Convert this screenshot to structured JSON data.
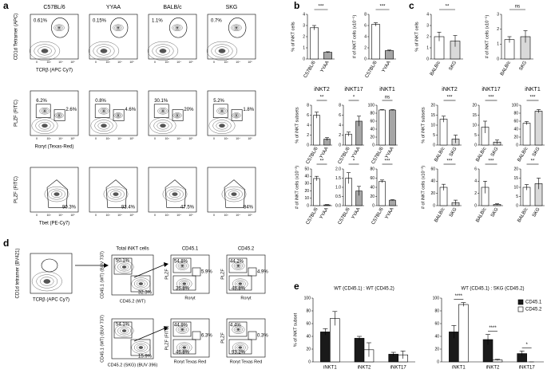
{
  "panel_labels": [
    "a",
    "b",
    "c",
    "d",
    "e"
  ],
  "flow_a": {
    "columns": [
      "C57BL/6",
      "YYAA",
      "BALB/c",
      "SKG"
    ],
    "axis_ticks": [
      "0",
      "10³",
      "10⁴",
      "10⁵"
    ],
    "rows": [
      {
        "ylabel": "CD1d Tetramer (APC)",
        "xlabel": "TCRβ (APC Cy7)",
        "gates": [
          [
            "0.61%"
          ],
          [
            "0.15%"
          ],
          [
            "1.1%"
          ],
          [
            "0.7%"
          ]
        ]
      },
      {
        "ylabel": "PLZF (FITC)",
        "xlabel": "Rorγt (Texas-Red)",
        "gates": [
          [
            "6.2%",
            "2.6%"
          ],
          [
            "0.8%",
            "4.6%"
          ],
          [
            "30.1%",
            "20%"
          ],
          [
            "5.2%",
            "1.8%"
          ]
        ]
      },
      {
        "ylabel": "PLZF (FITC)",
        "xlabel": "Tbet (PE-Cy7)",
        "gates": [
          [
            "90.3%"
          ],
          [
            "93.4%"
          ],
          [
            "47.5%"
          ],
          [
            "84%"
          ]
        ]
      }
    ]
  },
  "flow_d": {
    "gate_plot": {
      "ylabel": "CD1d tetramer (BV421)",
      "xlabel": "TCRβ (APC Cy7)"
    },
    "column_titles": [
      "Total iNKT cells",
      "CD45.1",
      "CD45.2"
    ],
    "rows": [
      {
        "ylabel": "CD45.1 (WT) (BUV 737)",
        "xlabel": "CD45.2 (WT)",
        "gates": [
          "50.1%",
          "32.3%"
        ],
        "subsets": [
          {
            "ylabel": "PLZF",
            "xlabel": "Rorγt",
            "gates": [
              "54.8%",
              "5.9%",
              "36.8%"
            ]
          },
          {
            "ylabel": "PLZF",
            "xlabel": "Rorγt",
            "gates": [
              "44.2%",
              "4.9%",
              "48.8%"
            ]
          }
        ]
      },
      {
        "ylabel": "CD45.1 (WT) (BUV 737)",
        "xlabel": "CD45.2 (SKG) (BUV 396)",
        "gates": [
          "54.1%",
          "15.9%"
        ],
        "subsets": [
          {
            "ylabel": "PLZF (FITC)",
            "xlabel": "Rorγt Texas Red",
            "gates": [
              "44.9%",
              "6.3%",
              "46.8%"
            ]
          },
          {
            "ylabel": "PLZF",
            "xlabel": "Rorγt Texas Red",
            "gates": [
              "4.4%",
              "0.3%",
              "93.2%"
            ]
          }
        ]
      }
    ]
  },
  "chart_data": [
    {
      "type": "bar",
      "ylabel": "% of iNKT cells",
      "categories": [
        "C57BL/6",
        "YYAA"
      ],
      "values": [
        2.8,
        0.6
      ],
      "errors": [
        0.2,
        0.05
      ],
      "colors": [
        "#ffffff",
        "#a6a6a6"
      ],
      "ylim": [
        0,
        4
      ],
      "yticks": [
        0,
        1,
        2,
        3,
        4
      ],
      "significance": "***"
    },
    {
      "type": "bar",
      "ylabel": "# of iNKT cells (x10⁻⁵)",
      "categories": [
        "C57BL/6",
        "YYAA"
      ],
      "values": [
        6.2,
        1.5
      ],
      "errors": [
        0.3,
        0.1
      ],
      "colors": [
        "#ffffff",
        "#a6a6a6"
      ],
      "ylim": [
        0,
        8
      ],
      "yticks": [
        0,
        2,
        4,
        6,
        8
      ],
      "significance": "***"
    },
    {
      "type": "bar",
      "title": "iNKT2",
      "ylabel": "% of iNKT subsets",
      "categories": [
        "C57BL/6",
        "YYAA"
      ],
      "values": [
        6,
        1.2
      ],
      "errors": [
        0.6,
        0.3
      ],
      "colors": [
        "#ffffff",
        "#a6a6a6"
      ],
      "ylim": [
        0,
        8
      ],
      "yticks": [
        0,
        2,
        4,
        6,
        8
      ],
      "significance": "**"
    },
    {
      "type": "bar",
      "title": "iNKT17",
      "categories": [
        "C57BL/6",
        "YYAA"
      ],
      "values": [
        2.2,
        4.8
      ],
      "errors": [
        0.4,
        1
      ],
      "colors": [
        "#ffffff",
        "#a6a6a6"
      ],
      "ylim": [
        0,
        8
      ],
      "yticks": [
        0,
        2,
        4,
        6,
        8
      ],
      "significance": "*"
    },
    {
      "type": "bar",
      "title": "iNKT1",
      "categories": [
        "C57BL/6",
        "YYAA"
      ],
      "values": [
        88,
        88
      ],
      "errors": [
        1,
        1
      ],
      "colors": [
        "#ffffff",
        "#a6a6a6"
      ],
      "ylim": [
        0,
        100
      ],
      "yticks": [
        0,
        20,
        40,
        60,
        80,
        100
      ],
      "significance": "ns"
    },
    {
      "type": "bar",
      "ylabel": "# of iNKT cells (x10⁻³)",
      "categories": [
        "C57BL/6",
        "YYAA"
      ],
      "values": [
        37,
        1
      ],
      "errors": [
        3,
        0.5
      ],
      "colors": [
        "#ffffff",
        "#a6a6a6"
      ],
      "ylim": [
        0,
        50
      ],
      "yticks": [
        0,
        10,
        20,
        30,
        40,
        50
      ],
      "significance": "**"
    },
    {
      "type": "bar",
      "categories": [
        "C57BL/6",
        "YYAA"
      ],
      "values": [
        1.5,
        0.8
      ],
      "errors": [
        0.3,
        0.25
      ],
      "colors": [
        "#ffffff",
        "#a6a6a6"
      ],
      "ylim": [
        0,
        2
      ],
      "yticks": [
        {
          "value": 0,
          "label": "0.0"
        },
        {
          "value": 0.5,
          "label": "0.5"
        },
        {
          "value": 1,
          "label": "1.0"
        },
        {
          "value": 1.5,
          "label": "1.5"
        },
        {
          "value": 2,
          "label": "2.0"
        }
      ],
      "significance": "*"
    },
    {
      "type": "bar",
      "categories": [
        "C57BL/6",
        "YYAA"
      ],
      "values": [
        53,
        12
      ],
      "errors": [
        3,
        1
      ],
      "colors": [
        "#ffffff",
        "#a6a6a6"
      ],
      "ylim": [
        0,
        80
      ],
      "yticks": [
        0,
        20,
        40,
        60,
        80
      ],
      "significance": "***"
    },
    {
      "type": "bar",
      "ylabel": "% of iNKT cells",
      "categories": [
        "BALB/c",
        "SKG"
      ],
      "values": [
        2,
        1.6
      ],
      "errors": [
        0.4,
        0.5
      ],
      "colors": [
        "#ffffff",
        "#d9d9d9"
      ],
      "ylim": [
        0,
        4
      ],
      "yticks": [
        0,
        1,
        2,
        3,
        4
      ],
      "significance": "**"
    },
    {
      "type": "bar",
      "ylabel": "# of iNKT cells (x10⁻⁵)",
      "categories": [
        "BALB/c",
        "SKG"
      ],
      "values": [
        1.3,
        1.5
      ],
      "errors": [
        0.2,
        0.4
      ],
      "colors": [
        "#ffffff",
        "#d9d9d9"
      ],
      "ylim": [
        0,
        3
      ],
      "yticks": [
        0,
        1,
        2,
        3
      ],
      "significance": "ns"
    },
    {
      "type": "bar",
      "title": "iNKT2",
      "ylabel": "% of iNKT subsets",
      "categories": [
        "BALB/c",
        "SKG"
      ],
      "values": [
        13,
        3
      ],
      "errors": [
        1.5,
        2
      ],
      "colors": [
        "#ffffff",
        "#d9d9d9"
      ],
      "ylim": [
        0,
        20
      ],
      "yticks": [
        0,
        5,
        10,
        15,
        20
      ],
      "significance": "***"
    },
    {
      "type": "bar",
      "title": "iNKT17",
      "categories": [
        "BALB/c",
        "SKG"
      ],
      "values": [
        9,
        1.5
      ],
      "errors": [
        3,
        1
      ],
      "colors": [
        "#ffffff",
        "#d9d9d9"
      ],
      "ylim": [
        0,
        20
      ],
      "yticks": [
        0,
        5,
        10,
        15,
        20
      ],
      "significance": "***"
    },
    {
      "type": "bar",
      "title": "iNKT1",
      "categories": [
        "BALB/c",
        "SKG"
      ],
      "values": [
        55,
        85
      ],
      "errors": [
        4,
        4
      ],
      "colors": [
        "#ffffff",
        "#d9d9d9"
      ],
      "ylim": [
        0,
        100
      ],
      "yticks": [
        0,
        20,
        40,
        60,
        80,
        100
      ],
      "significance": "***"
    },
    {
      "type": "bar",
      "ylabel": "# of iNKT cells (x10⁻³)",
      "categories": [
        "BALB/c",
        "SKG"
      ],
      "values": [
        30,
        5
      ],
      "errors": [
        5,
        4
      ],
      "colors": [
        "#ffffff",
        "#d9d9d9"
      ],
      "ylim": [
        0,
        60
      ],
      "yticks": [
        0,
        20,
        40,
        60
      ],
      "significance": "***"
    },
    {
      "type": "bar",
      "categories": [
        "BALB/c",
        "SKG"
      ],
      "values": [
        3,
        0.2
      ],
      "errors": [
        1,
        0.1
      ],
      "colors": [
        "#ffffff",
        "#d9d9d9"
      ],
      "ylim": [
        0,
        6
      ],
      "yticks": [
        0,
        2,
        4,
        6
      ],
      "significance": "***"
    },
    {
      "type": "bar",
      "categories": [
        "BALB/c",
        "SKG"
      ],
      "values": [
        10,
        12
      ],
      "errors": [
        1.5,
        3
      ],
      "colors": [
        "#ffffff",
        "#d9d9d9"
      ],
      "ylim": [
        0,
        20
      ],
      "yticks": [
        0,
        5,
        10,
        15,
        20
      ],
      "significance": "**"
    },
    {
      "type": "bar",
      "title": "WT (CD45.1) : WT (CD45.2)",
      "ylabel": "% of iNKT subset",
      "categories": [
        "iNKT1",
        "iNKT2",
        "iNKT17"
      ],
      "series": [
        {
          "name": "CD45.1",
          "color": "#1a1a1a",
          "values": [
            47,
            37,
            12
          ],
          "errors": [
            5,
            3,
            3
          ]
        },
        {
          "name": "CD45.2",
          "color": "#ffffff",
          "values": [
            68,
            19,
            11
          ],
          "errors": [
            11,
            11,
            6
          ]
        }
      ],
      "ylim": [
        0,
        100
      ],
      "yticks": [
        0,
        20,
        40,
        60,
        80,
        100
      ]
    },
    {
      "type": "bar",
      "title": "WT (CD45.1) : SKG (CD45.2)",
      "categories": [
        "iNKT1",
        "iNKT2",
        "iNKT17"
      ],
      "series": [
        {
          "name": "CD45.1",
          "color": "#1a1a1a",
          "values": [
            47,
            35,
            13
          ],
          "errors": [
            10,
            8,
            4
          ]
        },
        {
          "name": "CD45.2",
          "color": "#ffffff",
          "values": [
            90,
            3,
            0
          ],
          "errors": [
            3,
            1,
            0
          ]
        }
      ],
      "ylim": [
        0,
        100
      ],
      "yticks": [
        0,
        20,
        40,
        60,
        80,
        100
      ],
      "significance": [
        "****",
        "****",
        "*"
      ],
      "legend": "top-right"
    }
  ]
}
